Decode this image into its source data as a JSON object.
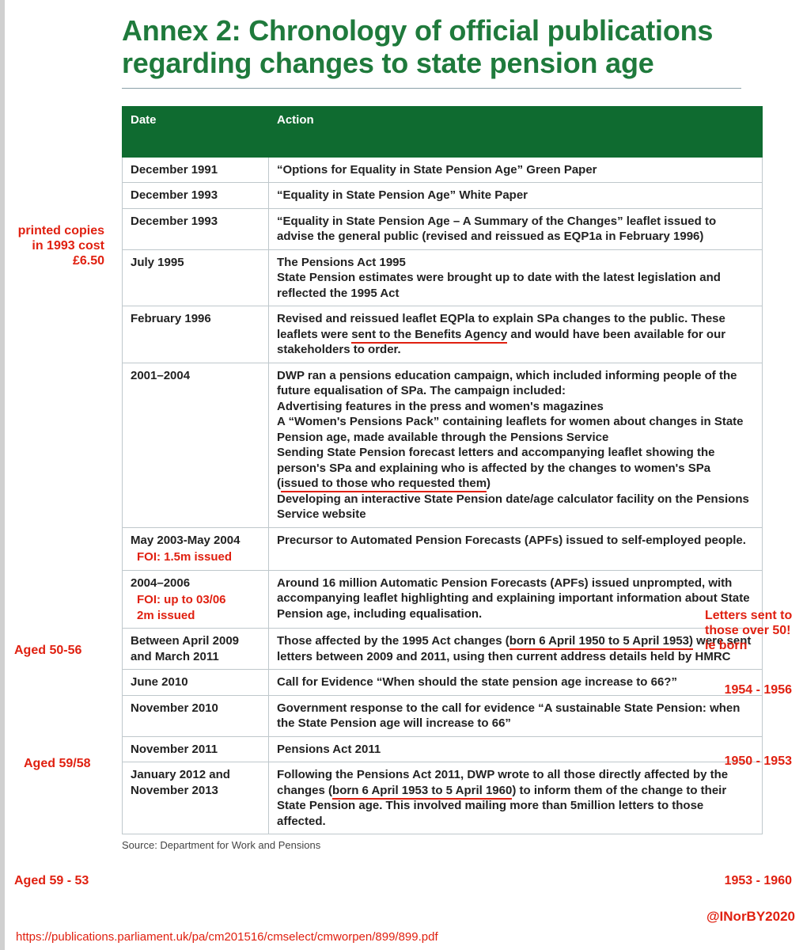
{
  "title": "Annex 2: Chronology of official publications regarding changes to state pension age",
  "columns": {
    "date": "Date",
    "action": "Action"
  },
  "rows": [
    {
      "date": "December 1991",
      "action": "“Options for Equality in State Pension Age” Green Paper"
    },
    {
      "date": "December 1993",
      "action": "“Equality in State Pension Age” White Paper"
    },
    {
      "date": "December 1993",
      "action": "“Equality in State Pension Age – A Summary of the Changes” leaflet issued to advise the general public (revised and reissued as EQP1a in February 1996)"
    },
    {
      "date": "July 1995",
      "action": "The Pensions Act 1995\nState Pension estimates were brought up to date with the latest legislation and reflected the 1995 Act"
    },
    {
      "date": "February 1996",
      "action_html": "Revised and reissued leaflet EQPla to explain SPa changes to the public. These leaflets were <span class=\"ul-red\">sent to the Benefits Agency</span> and would have been available for our stakeholders to order."
    },
    {
      "date": "2001–2004",
      "action_html": "DWP ran a pensions education campaign, which included informing people of the future equalisation of SPa. The campaign included:<br>Advertising features in the press and women's magazines<br>A “Women's Pensions Pack” containing leaflets for women about changes in State Pension age, made available through the Pensions Service<br>Sending State Pension forecast letters and accompanying leaflet showing the person's SPa and explaining who is affected by the changes to women's SPa (<span class=\"ul-red\">issued to those who requested them</span>)<br>Developing an interactive State Pension date/age calculator facility on the Pensions Service website"
    },
    {
      "date": "May 2003-May 2004",
      "foi": "FOI: 1.5m issued",
      "action": "Precursor to Automated Pension Forecasts (APFs) issued to self-employed people."
    },
    {
      "date": "2004–2006",
      "foi": "FOI: up to 03/06\n2m issued",
      "action": "Around 16 million Automatic Pension Forecasts (APFs) issued unprompted, with accompanying leaflet highlighting and explaining important information about State Pension age, including equalisation."
    },
    {
      "date": "Between April 2009 and March 2011",
      "action_html": "Those affected by the 1995 Act changes (<span class=\"ul-red\">born 6 April 1950 to 5 April 1953)</span> were sent letters between 2009 and 2011, using then current address details held by HMRC"
    },
    {
      "date": "June 2010",
      "action": "Call for Evidence “When should the state pension age increase to 66?”"
    },
    {
      "date": "November 2010",
      "action": "Government response to the call for evidence “A sustainable State Pension: when the State Pension age will increase to 66”"
    },
    {
      "date": "November 2011",
      "action": "Pensions Act 2011"
    },
    {
      "date": "January 2012 and November 2013",
      "action_html": "Following the Pensions Act 2011, DWP wrote to all those directly affected by the changes (<span class=\"ul-red\">born 6 April 1953 to 5 April 1960</span>) to inform them of the change to their State Pension age. This involved mailing more than 5million letters to those affected."
    }
  ],
  "source": "Source: Department for Work and Pensions",
  "annotations": {
    "left_1993": "printed copies in 1993 cost £6.50",
    "left_50_56": "Aged 50-56",
    "left_59_58": "Aged 59/58",
    "left_59_53": "Aged 59  - 53",
    "right_over50": "Letters sent to those over 50! ie born",
    "right_1956": "1954 - 1956",
    "right_1950_1953": "1950 - 1953",
    "right_1953_1960": "1953 - 1960",
    "handle": "@INorBY2020",
    "link": "https://publications.parliament.uk/pa/cm201516/cmselect/cmworpen/899/899.pdf"
  }
}
